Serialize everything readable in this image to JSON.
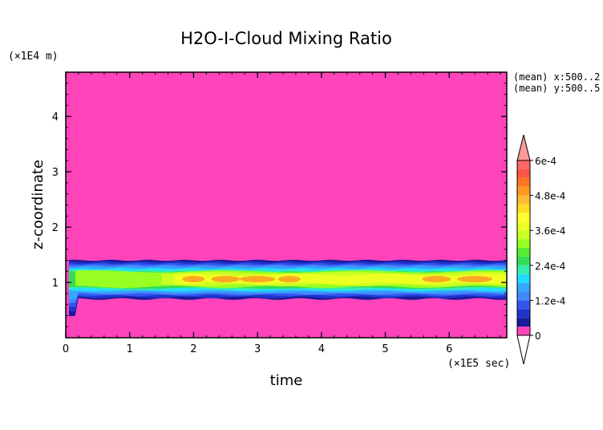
{
  "chart_data": {
    "type": "heatmap",
    "title": "H2O-I-Cloud Mixing Ratio",
    "xlabel": "time",
    "ylabel": "z-coordinate",
    "x_unit": "(×1E5 sec)",
    "y_unit": "(×1E4 m)",
    "xlim": [
      0,
      6.9
    ],
    "ylim": [
      0,
      4.8
    ],
    "x_ticks": [
      0,
      1,
      2,
      3,
      4,
      5,
      6
    ],
    "y_ticks": [
      1,
      2,
      3,
      4
    ],
    "annotations": [
      "(mean) x:500..2",
      "(mean) y:500..5"
    ],
    "colorbar": {
      "extend": "both",
      "tick_labels": [
        "0",
        "1.2e-4",
        "2.4e-4",
        "3.6e-4",
        "4.8e-4",
        "6e-4"
      ],
      "tick_values": [
        0,
        0.00012,
        0.00024,
        0.00036,
        0.00048,
        0.0006
      ],
      "levels": [
        0,
        3e-05,
        6e-05,
        9e-05,
        0.00012,
        0.00015,
        0.00018,
        0.00021,
        0.00024,
        0.00027,
        0.0003,
        0.00033,
        0.00036,
        0.00039,
        0.00042,
        0.00045,
        0.00048,
        0.00051,
        0.00054,
        0.00057,
        0.0006
      ],
      "colors": [
        "#ff44bb",
        "#1a1a9a",
        "#2233cc",
        "#3355ee",
        "#4488ff",
        "#33aaff",
        "#22ddff",
        "#33eeaa",
        "#33dd55",
        "#55ee33",
        "#99ff22",
        "#ccff22",
        "#eeff22",
        "#ffff33",
        "#ffdd22",
        "#ffbb33",
        "#ff9922",
        "#ff7722",
        "#ff5544",
        "#ff6666"
      ],
      "over_color": "#ff9999",
      "under_color": "#ffffff"
    },
    "background_value": 0,
    "cloud_layer": {
      "top_z": 1.4,
      "bottom_z": 0.72,
      "core_z_range": [
        0.95,
        1.15
      ],
      "core_value": 0.00036,
      "peak_value": 0.00048,
      "peak_times": [
        2.0,
        2.5,
        3.0,
        3.5,
        5.8,
        6.4
      ]
    }
  }
}
